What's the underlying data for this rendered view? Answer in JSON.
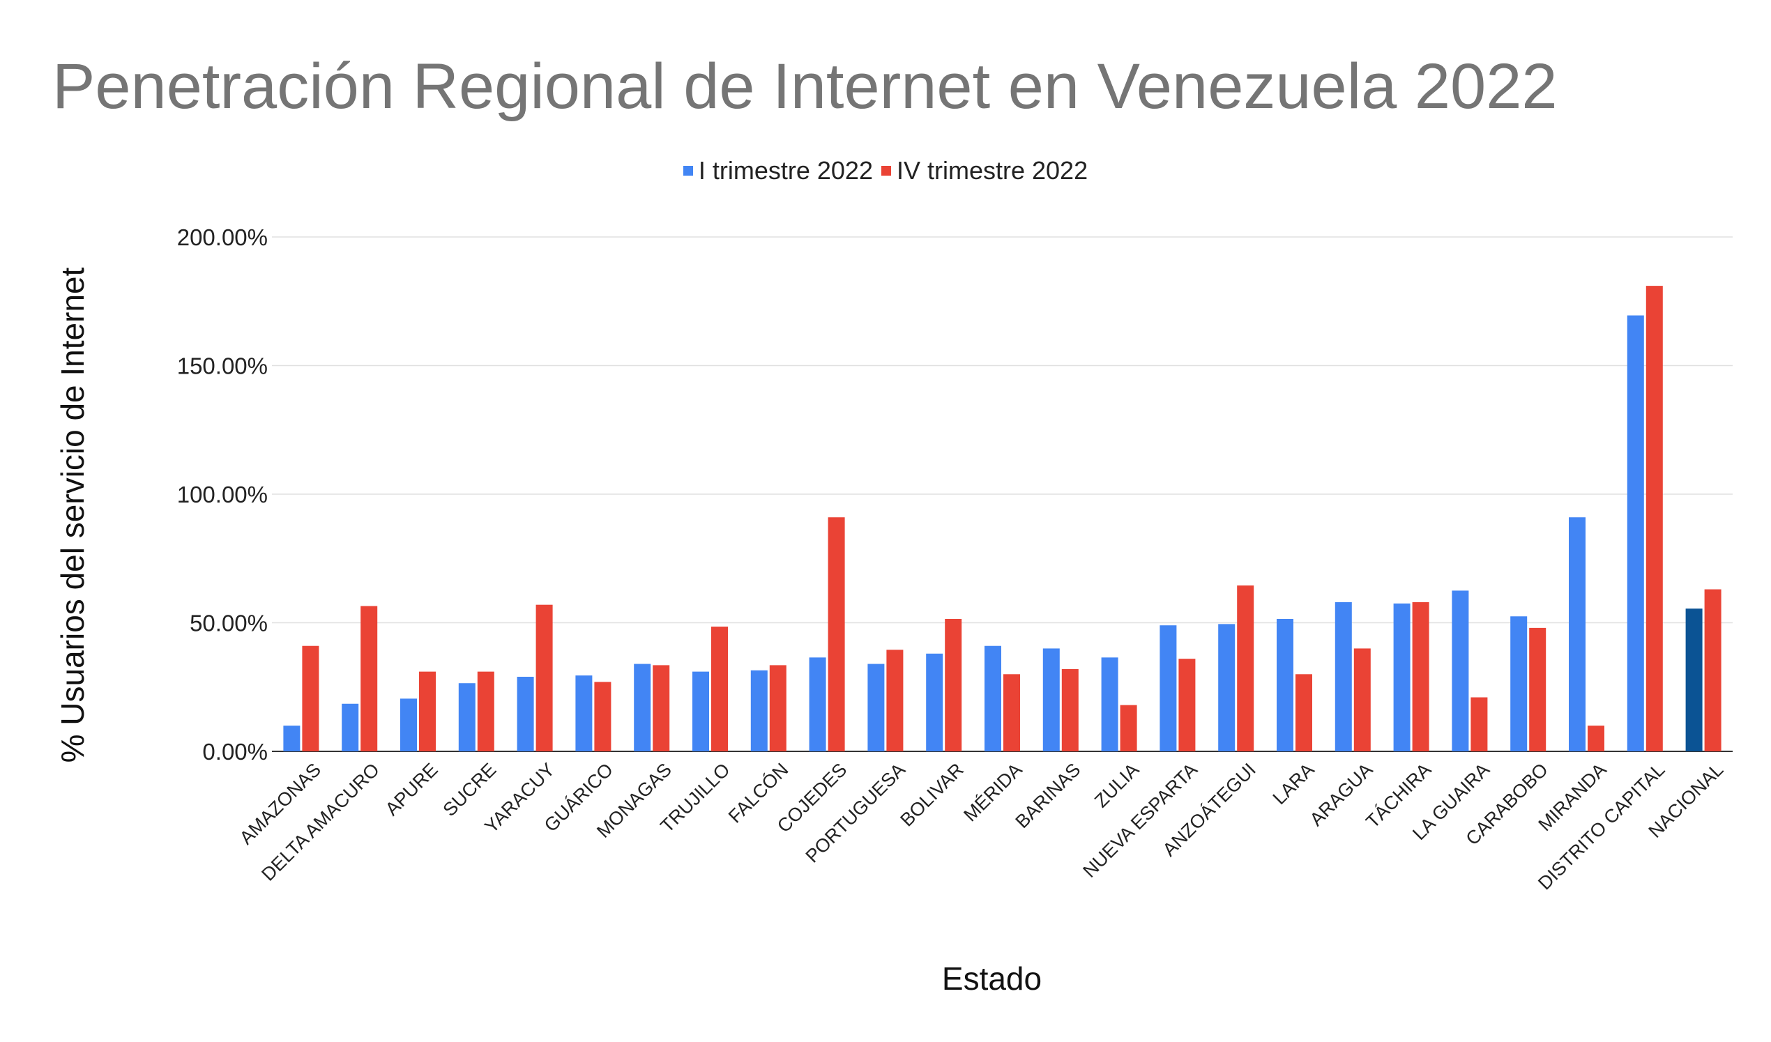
{
  "chart_data": {
    "type": "bar",
    "title": "Penetración Regional de Internet en Venezuela 2022",
    "xlabel": "Estado",
    "ylabel": "% Usuarios del servicio de Internet",
    "ylim": [
      0,
      200
    ],
    "yticks": [
      "0.00%",
      "50.00%",
      "100.00%",
      "150.00%",
      "200.00%"
    ],
    "grid": true,
    "legend_position": "top",
    "categories": [
      "AMAZONAS",
      "DELTA AMACURO",
      "APURE",
      "SUCRE",
      "YARACUY",
      "GUÁRICO",
      "MONAGAS",
      "TRUJILLO",
      "FALCÓN",
      "COJEDES",
      "PORTUGUESA",
      "BOLIVAR",
      "MÉRIDA",
      "BARINAS",
      "ZULIA",
      "NUEVA ESPARTA",
      "ANZOÁTEGUI",
      "LARA",
      "ARAGUA",
      "TÁCHIRA",
      "LA GUAIRA",
      "CARABOBO",
      "MIRANDA",
      "DISTRITO CAPITAL",
      "NACIONAL"
    ],
    "series": [
      {
        "name": "I trimestre 2022",
        "color": "#4285F4",
        "values": [
          10.0,
          18.5,
          20.5,
          26.5,
          29.0,
          29.5,
          34.0,
          31.0,
          31.5,
          36.5,
          34.0,
          38.0,
          41.0,
          40.0,
          36.5,
          49.0,
          49.5,
          51.5,
          58.0,
          57.5,
          62.5,
          52.5,
          91.0,
          169.5,
          55.5
        ]
      },
      {
        "name": "IV trimestre 2022",
        "color": "#EA4335",
        "values": [
          41.0,
          56.5,
          31.0,
          31.0,
          57.0,
          27.0,
          33.5,
          48.5,
          33.5,
          91.0,
          39.5,
          51.5,
          30.0,
          32.0,
          18.0,
          36.0,
          64.5,
          30.0,
          40.0,
          58.0,
          21.0,
          48.0,
          10.0,
          181.0,
          63.0
        ]
      }
    ],
    "highlight": {
      "category": "NACIONAL",
      "series": "I trimestre 2022",
      "color": "#0B5394"
    }
  }
}
